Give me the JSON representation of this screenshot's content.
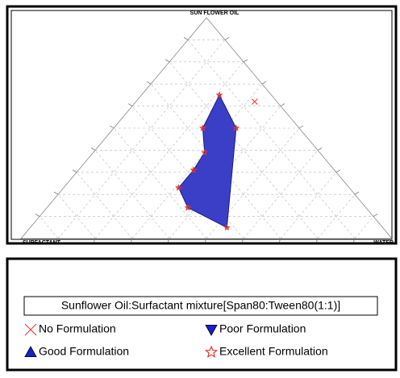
{
  "chart_data": {
    "type": "ternary",
    "axis_labels": {
      "top": "SUN FLOWER OIL",
      "left": "SURFACTANT",
      "right": "WATER"
    },
    "ticks": [
      10,
      20,
      30,
      40,
      50,
      60,
      70,
      80,
      90
    ],
    "grid": true,
    "legend_title": "Sunflower Oil:Surfactant mixture[Span80:Tween80(1:1)]",
    "region": {
      "color": "#3b3fc8",
      "oil": [
        65,
        50,
        5,
        14,
        23,
        31,
        39,
        50
      ],
      "water": [
        21,
        33,
        53,
        38,
        31,
        31,
        30,
        24
      ],
      "surfactant": [
        14,
        17,
        42,
        48,
        46,
        38,
        31,
        26
      ]
    },
    "series": [
      {
        "name": "No Formulation",
        "marker": "x",
        "color": "#e8332a",
        "oil": [
          62
        ],
        "water": [
          32
        ],
        "surfactant": [
          6
        ]
      },
      {
        "name": "Poor Formulation",
        "marker": "triangle-down",
        "color": "#1a1fd0",
        "oil": [],
        "water": [],
        "surfactant": []
      },
      {
        "name": "Good Formulation",
        "marker": "triangle-up",
        "color": "#1a1fd0",
        "oil": [],
        "water": [],
        "surfactant": []
      },
      {
        "name": "Excellent Formulation",
        "marker": "star",
        "color": "#e8332a",
        "oil": [
          65,
          50,
          5,
          14,
          23,
          31,
          39,
          50
        ],
        "water": [
          21,
          33,
          53,
          38,
          31,
          31,
          30,
          24
        ],
        "surfactant": [
          14,
          17,
          42,
          48,
          46,
          38,
          31,
          26
        ]
      }
    ]
  }
}
